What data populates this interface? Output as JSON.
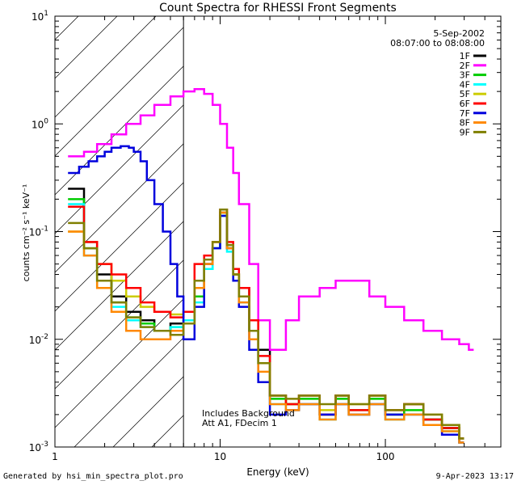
{
  "chart_data": {
    "type": "line",
    "title": "Count Spectra for RHESSI Front Segments",
    "xlabel": "Energy (keV)",
    "ylabel": "counts cm⁻² s⁻¹ keV⁻¹",
    "xscale": "log",
    "yscale": "log",
    "xlim": [
      1,
      500
    ],
    "ylim": [
      0.001,
      10
    ],
    "x_tick_labels": [
      {
        "value": 1,
        "label": "1"
      },
      {
        "value": 10,
        "label": "10"
      },
      {
        "value": 100,
        "label": "100"
      }
    ],
    "y_tick_labels": [
      {
        "value": 10,
        "base": "10",
        "exp": "1"
      },
      {
        "value": 1,
        "base": "10",
        "exp": "0"
      },
      {
        "value": 0.1,
        "base": "10",
        "exp": "-1"
      },
      {
        "value": 0.01,
        "base": "10",
        "exp": "-2"
      },
      {
        "value": 0.001,
        "base": "10",
        "exp": "-3"
      }
    ],
    "date": "5-Sep-2002",
    "time_range": "08:07:00 to 08:08:00",
    "shaded_region_max_keV": 6,
    "notes": [
      "Includes Background",
      "Att A1, FDecim 1"
    ],
    "series": [
      {
        "name": "1F",
        "color": "#000000",
        "x": [
          1.2,
          1.5,
          1.8,
          2.2,
          2.7,
          3.3,
          4.0,
          5.0,
          6.0,
          7.0,
          8.0,
          9.0,
          10.0,
          11.0,
          12.0,
          13.0,
          15.0,
          17.0,
          20.0,
          25.0,
          30.0,
          40.0,
          50.0,
          60.0,
          80.0,
          100.0,
          130.0,
          170.0,
          220.0,
          280.0
        ],
        "values": [
          0.25,
          0.08,
          0.04,
          0.025,
          0.018,
          0.015,
          0.012,
          0.014,
          0.015,
          0.03,
          0.05,
          0.07,
          0.15,
          0.07,
          0.04,
          0.03,
          0.015,
          0.008,
          0.003,
          0.0025,
          0.003,
          0.002,
          0.003,
          0.002,
          0.003,
          0.002,
          0.0025,
          0.0018,
          0.0015,
          0.0012
        ]
      },
      {
        "name": "2F",
        "color": "#ff00ff",
        "x": [
          1.2,
          1.5,
          1.8,
          2.2,
          2.7,
          3.3,
          4.0,
          5.0,
          6.0,
          7.0,
          8.0,
          9.0,
          10.0,
          11.0,
          12.0,
          13.0,
          15.0,
          17.0,
          20.0,
          25.0,
          30.0,
          40.0,
          50.0,
          60.0,
          80.0,
          100.0,
          130.0,
          170.0,
          220.0,
          280.0,
          320.0
        ],
        "values": [
          0.5,
          0.55,
          0.65,
          0.8,
          1.0,
          1.2,
          1.5,
          1.8,
          2.0,
          2.1,
          1.9,
          1.5,
          1.0,
          0.6,
          0.35,
          0.18,
          0.05,
          0.015,
          0.008,
          0.015,
          0.025,
          0.03,
          0.035,
          0.035,
          0.025,
          0.02,
          0.015,
          0.012,
          0.01,
          0.009,
          0.008
        ]
      },
      {
        "name": "3F",
        "color": "#00cc00",
        "x": [
          1.2,
          1.5,
          1.8,
          2.2,
          2.7,
          3.3,
          4.0,
          5.0,
          6.0,
          7.0,
          8.0,
          9.0,
          10.0,
          11.0,
          12.0,
          13.0,
          15.0,
          17.0,
          20.0,
          25.0,
          30.0,
          40.0,
          50.0,
          60.0,
          80.0,
          100.0,
          130.0,
          170.0,
          220.0,
          280.0
        ],
        "values": [
          0.2,
          0.07,
          0.035,
          0.022,
          0.016,
          0.014,
          0.012,
          0.013,
          0.014,
          0.025,
          0.045,
          0.07,
          0.14,
          0.07,
          0.04,
          0.025,
          0.012,
          0.006,
          0.0028,
          0.0025,
          0.0028,
          0.002,
          0.0028,
          0.0022,
          0.0028,
          0.002,
          0.0022,
          0.0018,
          0.0015,
          0.0012
        ]
      },
      {
        "name": "4F",
        "color": "#00ffff",
        "x": [
          1.2,
          1.5,
          1.8,
          2.2,
          2.7,
          3.3,
          4.0,
          5.0,
          6.0,
          7.0,
          8.0,
          9.0,
          10.0,
          11.0,
          12.0,
          13.0,
          15.0,
          17.0,
          20.0,
          25.0,
          30.0,
          40.0,
          50.0,
          60.0,
          80.0,
          100.0,
          130.0,
          170.0,
          220.0,
          280.0
        ],
        "values": [
          0.18,
          0.06,
          0.03,
          0.02,
          0.015,
          0.013,
          0.012,
          0.013,
          0.015,
          0.022,
          0.045,
          0.07,
          0.14,
          0.065,
          0.035,
          0.022,
          0.012,
          0.006,
          0.0025,
          0.0022,
          0.0025,
          0.0018,
          0.0025,
          0.002,
          0.0025,
          0.0018,
          0.002,
          0.0016,
          0.0014,
          0.0011
        ]
      },
      {
        "name": "5F",
        "color": "#cccc00",
        "x": [
          1.2,
          1.5,
          1.8,
          2.2,
          2.7,
          3.3,
          4.0,
          5.0,
          6.0,
          7.0,
          8.0,
          9.0,
          10.0,
          11.0,
          12.0,
          13.0,
          15.0,
          17.0,
          20.0,
          25.0,
          30.0,
          40.0,
          50.0,
          60.0,
          80.0,
          100.0,
          130.0,
          170.0,
          220.0,
          280.0
        ],
        "values": [
          0.1,
          0.08,
          0.05,
          0.035,
          0.025,
          0.02,
          0.018,
          0.017,
          0.018,
          0.03,
          0.05,
          0.08,
          0.15,
          0.07,
          0.04,
          0.025,
          0.012,
          0.006,
          0.003,
          0.0025,
          0.003,
          0.0022,
          0.003,
          0.0025,
          0.003,
          0.0022,
          0.0025,
          0.002,
          0.0016,
          0.0012
        ]
      },
      {
        "name": "6F",
        "color": "#ff0000",
        "x": [
          1.2,
          1.5,
          1.8,
          2.2,
          2.7,
          3.3,
          4.0,
          5.0,
          6.0,
          7.0,
          8.0,
          9.0,
          10.0,
          11.0,
          12.0,
          13.0,
          15.0,
          17.0,
          20.0,
          25.0,
          30.0,
          40.0,
          50.0,
          60.0,
          80.0,
          100.0,
          130.0,
          170.0,
          220.0,
          280.0
        ],
        "values": [
          0.17,
          0.08,
          0.05,
          0.04,
          0.03,
          0.022,
          0.018,
          0.016,
          0.018,
          0.05,
          0.06,
          0.08,
          0.16,
          0.08,
          0.045,
          0.03,
          0.015,
          0.007,
          0.003,
          0.0025,
          0.003,
          0.002,
          0.003,
          0.0022,
          0.003,
          0.0022,
          0.0025,
          0.0018,
          0.0015,
          0.0012
        ]
      },
      {
        "name": "7F",
        "color": "#0000dd",
        "x": [
          1.2,
          1.4,
          1.6,
          1.8,
          2.0,
          2.2,
          2.5,
          2.8,
          3.0,
          3.3,
          3.6,
          4.0,
          4.5,
          5.0,
          5.5,
          6.0,
          7.0,
          8.0,
          9.0,
          10.0,
          11.0,
          12.0,
          13.0,
          15.0,
          17.0,
          20.0,
          25.0,
          30.0,
          40.0,
          50.0,
          60.0,
          80.0,
          100.0,
          130.0,
          170.0,
          220.0,
          280.0
        ],
        "values": [
          0.35,
          0.4,
          0.45,
          0.5,
          0.55,
          0.6,
          0.62,
          0.6,
          0.55,
          0.45,
          0.3,
          0.18,
          0.1,
          0.05,
          0.025,
          0.01,
          0.02,
          0.05,
          0.07,
          0.14,
          0.07,
          0.035,
          0.02,
          0.008,
          0.004,
          0.002,
          0.0022,
          0.0025,
          0.002,
          0.0025,
          0.002,
          0.0025,
          0.002,
          0.002,
          0.0016,
          0.0013,
          0.0011
        ]
      },
      {
        "name": "8F",
        "color": "#ff8800",
        "x": [
          1.2,
          1.5,
          1.8,
          2.2,
          2.7,
          3.3,
          4.0,
          5.0,
          6.0,
          7.0,
          8.0,
          9.0,
          10.0,
          11.0,
          12.0,
          13.0,
          15.0,
          17.0,
          20.0,
          25.0,
          30.0,
          40.0,
          50.0,
          60.0,
          80.0,
          100.0,
          130.0,
          170.0,
          220.0,
          280.0
        ],
        "values": [
          0.1,
          0.06,
          0.03,
          0.018,
          0.012,
          0.01,
          0.01,
          0.012,
          0.014,
          0.03,
          0.05,
          0.08,
          0.15,
          0.07,
          0.04,
          0.022,
          0.01,
          0.005,
          0.0025,
          0.0022,
          0.0025,
          0.0018,
          0.0025,
          0.002,
          0.0025,
          0.0018,
          0.002,
          0.0016,
          0.0014,
          0.0011
        ]
      },
      {
        "name": "9F",
        "color": "#808000",
        "x": [
          1.2,
          1.5,
          1.8,
          2.2,
          2.7,
          3.3,
          4.0,
          5.0,
          6.0,
          7.0,
          8.0,
          9.0,
          10.0,
          11.0,
          12.0,
          13.0,
          15.0,
          17.0,
          20.0,
          25.0,
          30.0,
          40.0,
          50.0,
          60.0,
          80.0,
          100.0,
          130.0,
          170.0,
          220.0,
          280.0
        ],
        "values": [
          0.12,
          0.07,
          0.035,
          0.022,
          0.016,
          0.013,
          0.012,
          0.011,
          0.014,
          0.035,
          0.055,
          0.08,
          0.16,
          0.075,
          0.04,
          0.025,
          0.012,
          0.006,
          0.003,
          0.0028,
          0.003,
          0.0025,
          0.003,
          0.0025,
          0.003,
          0.0022,
          0.0025,
          0.002,
          0.0016,
          0.0012
        ]
      }
    ]
  },
  "footer": {
    "left": "Generated by hsi_min_spectra_plot.pro",
    "right": "9-Apr-2023 13:17"
  }
}
